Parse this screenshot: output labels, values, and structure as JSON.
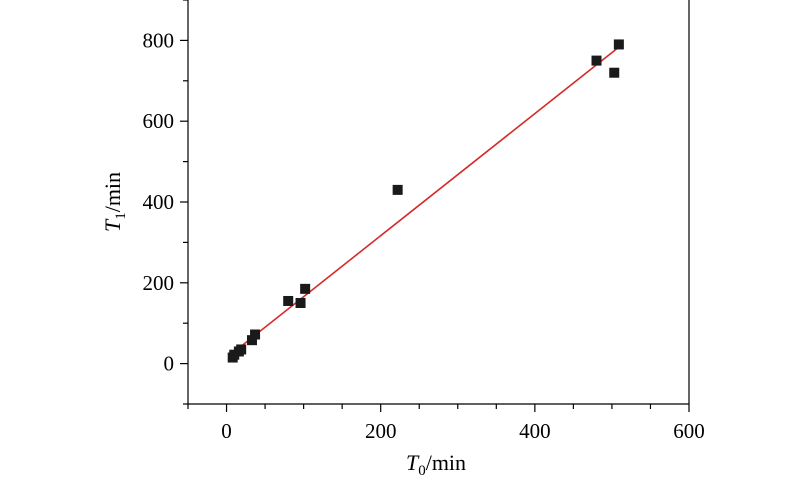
{
  "chart_data": {
    "type": "scatter",
    "xlabel": {
      "var": "T",
      "sub": "0",
      "unit": "/min"
    },
    "ylabel": {
      "var": "T",
      "sub": "1",
      "unit": "/min"
    },
    "xlim": [
      -50,
      600
    ],
    "ylim": [
      -100,
      900
    ],
    "xticks": [
      0,
      200,
      400,
      600
    ],
    "yticks": [
      0,
      200,
      400,
      600,
      800
    ],
    "xtick_labels": [
      "0",
      "200",
      "400",
      "600"
    ],
    "ytick_labels": [
      "0",
      "200",
      "400",
      "600",
      "800"
    ],
    "grid": false,
    "legend": "none",
    "marker_color": "#1a1a1a",
    "fit_color": "#d42a2a",
    "points": [
      {
        "x": 8,
        "y": 15
      },
      {
        "x": 10,
        "y": 22
      },
      {
        "x": 16,
        "y": 30
      },
      {
        "x": 19,
        "y": 35
      },
      {
        "x": 33,
        "y": 58
      },
      {
        "x": 37,
        "y": 72
      },
      {
        "x": 80,
        "y": 155
      },
      {
        "x": 96,
        "y": 150
      },
      {
        "x": 102,
        "y": 185
      },
      {
        "x": 222,
        "y": 430
      },
      {
        "x": 480,
        "y": 750
      },
      {
        "x": 503,
        "y": 720
      },
      {
        "x": 509,
        "y": 790
      }
    ],
    "fit_line": {
      "x": [
        5,
        510
      ],
      "y": [
        22,
        785
      ]
    }
  }
}
